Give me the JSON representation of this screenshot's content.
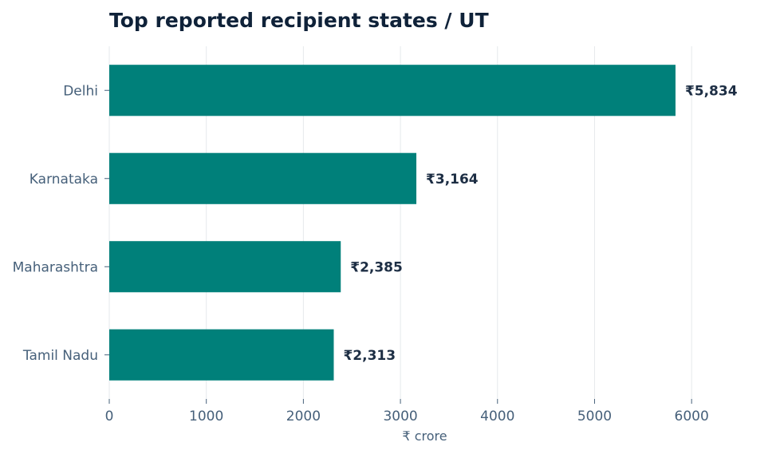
{
  "chart_data": {
    "type": "bar",
    "orientation": "horizontal",
    "title": "Top reported recipient states / UT",
    "xlabel": "₹ crore",
    "ylabel": "",
    "categories": [
      "Delhi",
      "Karnataka",
      "Maharashtra",
      "Tamil Nadu"
    ],
    "values": [
      5834,
      3164,
      2385,
      2313
    ],
    "data_labels": [
      "₹5,834",
      "₹3,164",
      "₹2,385",
      "₹2,313"
    ],
    "xlim": [
      0,
      6500
    ],
    "xticks": [
      0,
      1000,
      2000,
      3000,
      4000,
      5000,
      6000
    ],
    "grid": "vertical",
    "bar_color": "#00807a"
  }
}
